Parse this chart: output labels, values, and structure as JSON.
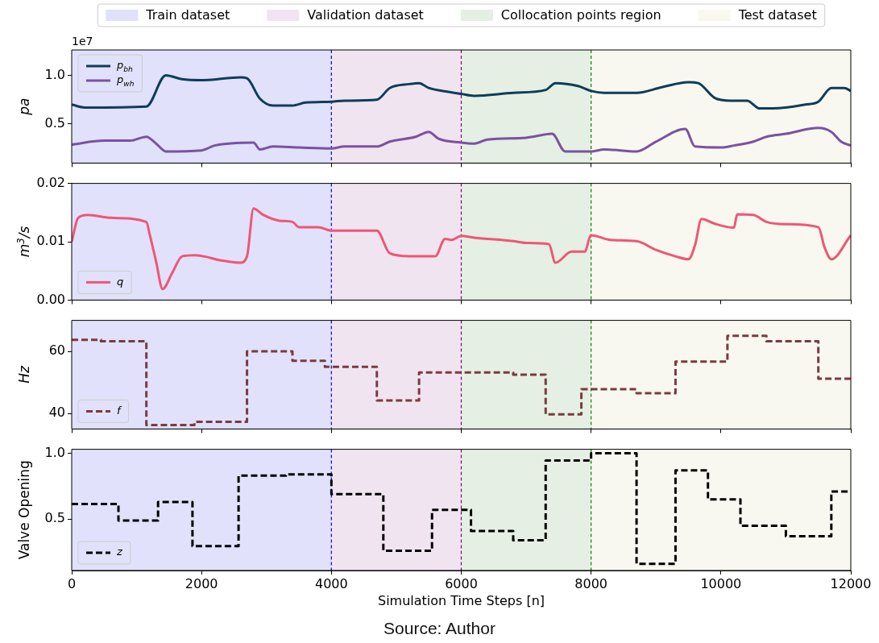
{
  "chart_data": [
    {
      "type": "line",
      "ylabel": "pa",
      "annotations": [
        "1e7"
      ],
      "legend": "top left",
      "tick_labels": "y",
      "marker": "none",
      "grid": false,
      "xlim": [
        0,
        12000
      ],
      "xticks": [
        0,
        2000,
        4000,
        6000,
        8000,
        10000,
        12000
      ],
      "ylim": [
        0.1,
        1.26
      ],
      "yticks": [
        0.5,
        {
          "value": 1,
          "label": "1.0"
        }
      ],
      "bands": [
        {
          "axis": "x",
          "from": 0,
          "to": 4000,
          "label": "Train dataset",
          "color": "#e1e1fb"
        },
        {
          "axis": "x",
          "from": 4000,
          "to": 6000,
          "label": "Validation dataset",
          "color": "#f1e4f1"
        },
        {
          "axis": "x",
          "from": 6000,
          "to": 8000,
          "label": "Collocation points region",
          "color": "#e5efe3"
        },
        {
          "axis": "x",
          "from": 8000,
          "to": 12000,
          "label": "Test dataset",
          "color": "#f8f8f0"
        }
      ],
      "ref_lines": [
        {
          "axis": "x",
          "value": 4000,
          "color": "#0000ff",
          "line_style": "dashed"
        },
        {
          "axis": "x",
          "value": 6000,
          "color": "#800080",
          "line_style": "dashed"
        },
        {
          "axis": "x",
          "value": 8000,
          "color": "#008000",
          "line_style": "dashed"
        }
      ],
      "series": [
        {
          "name": "p$_{bh}$",
          "color": "#0e3d59",
          "x": [
            0,
            200,
            1150,
            1450,
            1700,
            2000,
            2600,
            2700,
            2900,
            3100,
            3400,
            3600,
            4000,
            4200,
            4700,
            4900,
            5200,
            5350,
            5500,
            5800,
            6000,
            6200,
            6800,
            7300,
            7450,
            7800,
            8000,
            8200,
            8700,
            9100,
            9500,
            9650,
            9900,
            10150,
            10400,
            10600,
            10800,
            11300,
            11500,
            11700,
            11900,
            12000
          ],
          "values": [
            0.7,
            0.67,
            0.68,
            1.0,
            0.96,
            0.95,
            0.98,
            0.97,
            0.76,
            0.69,
            0.69,
            0.72,
            0.73,
            0.74,
            0.75,
            0.87,
            0.91,
            0.92,
            0.87,
            0.83,
            0.81,
            0.79,
            0.82,
            0.85,
            0.92,
            0.89,
            0.84,
            0.82,
            0.82,
            0.88,
            0.93,
            0.92,
            0.77,
            0.74,
            0.74,
            0.66,
            0.66,
            0.7,
            0.73,
            0.87,
            0.87,
            0.84
          ]
        },
        {
          "name": "p$_{wh}$",
          "color": "#7b52a0",
          "x": [
            0,
            500,
            900,
            1150,
            1300,
            1450,
            2000,
            2200,
            2800,
            2900,
            3100,
            3500,
            4000,
            4200,
            4700,
            4900,
            5300,
            5500,
            5650,
            6000,
            6200,
            6400,
            7000,
            7400,
            7600,
            8000,
            8200,
            8700,
            9000,
            9450,
            9600,
            10000,
            10200,
            10500,
            10700,
            11000,
            11500,
            11700,
            11850,
            12000
          ],
          "values": [
            0.29,
            0.33,
            0.33,
            0.37,
            0.3,
            0.22,
            0.23,
            0.28,
            0.31,
            0.24,
            0.27,
            0.26,
            0.25,
            0.27,
            0.27,
            0.32,
            0.37,
            0.42,
            0.35,
            0.31,
            0.3,
            0.34,
            0.36,
            0.4,
            0.22,
            0.22,
            0.24,
            0.22,
            0.32,
            0.45,
            0.27,
            0.26,
            0.28,
            0.32,
            0.37,
            0.4,
            0.46,
            0.42,
            0.32,
            0.28
          ]
        }
      ]
    },
    {
      "type": "line",
      "ylabel": "m$^{3}$/s",
      "legend": "bottom left",
      "tick_labels": "y",
      "marker": "none",
      "grid": false,
      "xlim": [
        0,
        12000
      ],
      "xticks": [
        0,
        2000,
        4000,
        6000,
        8000,
        10000,
        12000
      ],
      "ylim": [
        0,
        0.02
      ],
      "yticks": [
        {
          "value": 0,
          "label": "0.00"
        },
        {
          "value": 0.01,
          "label": "0.01"
        },
        {
          "value": 0.02,
          "label": "0.02"
        }
      ],
      "bands": [
        {
          "axis": "x",
          "from": 0,
          "to": 4000,
          "color": "#e1e1fb"
        },
        {
          "axis": "x",
          "from": 4000,
          "to": 6000,
          "color": "#f1e4f1"
        },
        {
          "axis": "x",
          "from": 6000,
          "to": 8000,
          "color": "#e5efe3"
        },
        {
          "axis": "x",
          "from": 8000,
          "to": 12000,
          "color": "#f8f8f0"
        }
      ],
      "ref_lines": [
        {
          "axis": "x",
          "value": 4000,
          "color": "#0000ff",
          "line_style": "dashed"
        },
        {
          "axis": "x",
          "value": 6000,
          "color": "#800080",
          "line_style": "dashed"
        },
        {
          "axis": "x",
          "value": 8000,
          "color": "#008000",
          "line_style": "dashed"
        }
      ],
      "series": [
        {
          "name": "q",
          "color": "#ef5675",
          "x": [
            0,
            100,
            250,
            600,
            1150,
            1200,
            1300,
            1400,
            1550,
            1700,
            1900,
            2300,
            2600,
            2700,
            2800,
            2950,
            3200,
            3400,
            3500,
            3800,
            4000,
            4700,
            4900,
            5200,
            5600,
            5750,
            5850,
            6000,
            6200,
            6800,
            7000,
            7350,
            7450,
            7700,
            7900,
            8000,
            8300,
            8700,
            9000,
            9300,
            9500,
            9600,
            9700,
            9900,
            10200,
            10250,
            10500,
            10700,
            11000,
            11500,
            11600,
            11700,
            12000
          ],
          "values": [
            0.01,
            0.0141,
            0.0146,
            0.0141,
            0.0134,
            0.0113,
            0.0066,
            0.0019,
            0.0047,
            0.0075,
            0.0077,
            0.0068,
            0.0064,
            0.0075,
            0.0157,
            0.0146,
            0.0136,
            0.0134,
            0.0125,
            0.0125,
            0.0119,
            0.0119,
            0.008,
            0.0075,
            0.0075,
            0.0105,
            0.0103,
            0.011,
            0.0107,
            0.0101,
            0.0098,
            0.0096,
            0.0064,
            0.0083,
            0.0083,
            0.0111,
            0.0103,
            0.0101,
            0.0086,
            0.0075,
            0.007,
            0.0094,
            0.0139,
            0.0131,
            0.0124,
            0.0147,
            0.0146,
            0.0134,
            0.013,
            0.0125,
            0.0089,
            0.007,
            0.0111
          ]
        }
      ]
    },
    {
      "type": "step",
      "ylabel": "Hz",
      "legend": "bottom left",
      "tick_labels": "y",
      "marker": "none",
      "grid": false,
      "xlim": [
        0,
        12000
      ],
      "xticks": [
        0,
        2000,
        4000,
        6000,
        8000,
        10000,
        12000
      ],
      "ylim": [
        35,
        70
      ],
      "yticks": [
        40,
        60
      ],
      "bands": [
        {
          "axis": "x",
          "from": 0,
          "to": 4000,
          "color": "#e1e1fb"
        },
        {
          "axis": "x",
          "from": 4000,
          "to": 6000,
          "color": "#f1e4f1"
        },
        {
          "axis": "x",
          "from": 6000,
          "to": 8000,
          "color": "#e5efe3"
        },
        {
          "axis": "x",
          "from": 8000,
          "to": 12000,
          "color": "#f8f8f0"
        }
      ],
      "ref_lines": [
        {
          "axis": "x",
          "value": 4000,
          "color": "#0000ff",
          "line_style": "dashed"
        },
        {
          "axis": "x",
          "value": 6000,
          "color": "#800080",
          "line_style": "dashed"
        },
        {
          "axis": "x",
          "value": 8000,
          "color": "#008000",
          "line_style": "dashed"
        }
      ],
      "series": [
        {
          "name": "f",
          "color": "#7a3b3f",
          "line_style": "dashed",
          "x": [
            0,
            450,
            1150,
            1890,
            2700,
            3400,
            3900,
            4700,
            5350,
            6800,
            7300,
            7850,
            8700,
            9300,
            10100,
            10700,
            11500,
            12000
          ],
          "values": [
            63.7,
            63.3,
            36.3,
            37.3,
            60,
            57,
            55,
            44.2,
            53.2,
            52.5,
            39.7,
            47.8,
            46.5,
            56.7,
            65,
            63.3,
            51.2,
            51.2
          ]
        }
      ]
    },
    {
      "type": "step",
      "ylabel": "Valve Opening",
      "xlabel": "Simulation Time Steps [n]",
      "annotations": [
        "Source: Author"
      ],
      "legend": "bottom left",
      "marker": "none",
      "grid": false,
      "xlim": [
        0,
        12000
      ],
      "xticks": [
        0,
        2000,
        4000,
        6000,
        8000,
        10000,
        12000
      ],
      "ylim": [
        0.11,
        1.03
      ],
      "yticks": [
        0.5,
        {
          "value": 1,
          "label": "1.0"
        }
      ],
      "bands": [
        {
          "axis": "x",
          "from": 0,
          "to": 4000,
          "color": "#e1e1fb"
        },
        {
          "axis": "x",
          "from": 4000,
          "to": 6000,
          "color": "#f1e4f1"
        },
        {
          "axis": "x",
          "from": 6000,
          "to": 8000,
          "color": "#e5efe3"
        },
        {
          "axis": "x",
          "from": 8000,
          "to": 12000,
          "color": "#f8f8f0"
        }
      ],
      "ref_lines": [
        {
          "axis": "x",
          "value": 4000,
          "color": "#0000ff",
          "line_style": "dashed"
        },
        {
          "axis": "x",
          "value": 6000,
          "color": "#800080",
          "line_style": "dashed"
        },
        {
          "axis": "x",
          "value": 8000,
          "color": "#008000",
          "line_style": "dashed"
        }
      ],
      "series": [
        {
          "name": "z",
          "color": "#000000",
          "line_style": "dashed",
          "x": [
            0,
            720,
            1330,
            1860,
            2570,
            3300,
            4000,
            4800,
            5550,
            6150,
            6800,
            7300,
            8000,
            8700,
            9300,
            9800,
            10300,
            11000,
            11700,
            12000
          ],
          "values": [
            0.615,
            0.49,
            0.63,
            0.295,
            0.83,
            0.84,
            0.69,
            0.26,
            0.57,
            0.41,
            0.34,
            0.945,
            1.0,
            0.16,
            0.87,
            0.65,
            0.45,
            0.37,
            0.71,
            0.71
          ]
        }
      ]
    }
  ]
}
